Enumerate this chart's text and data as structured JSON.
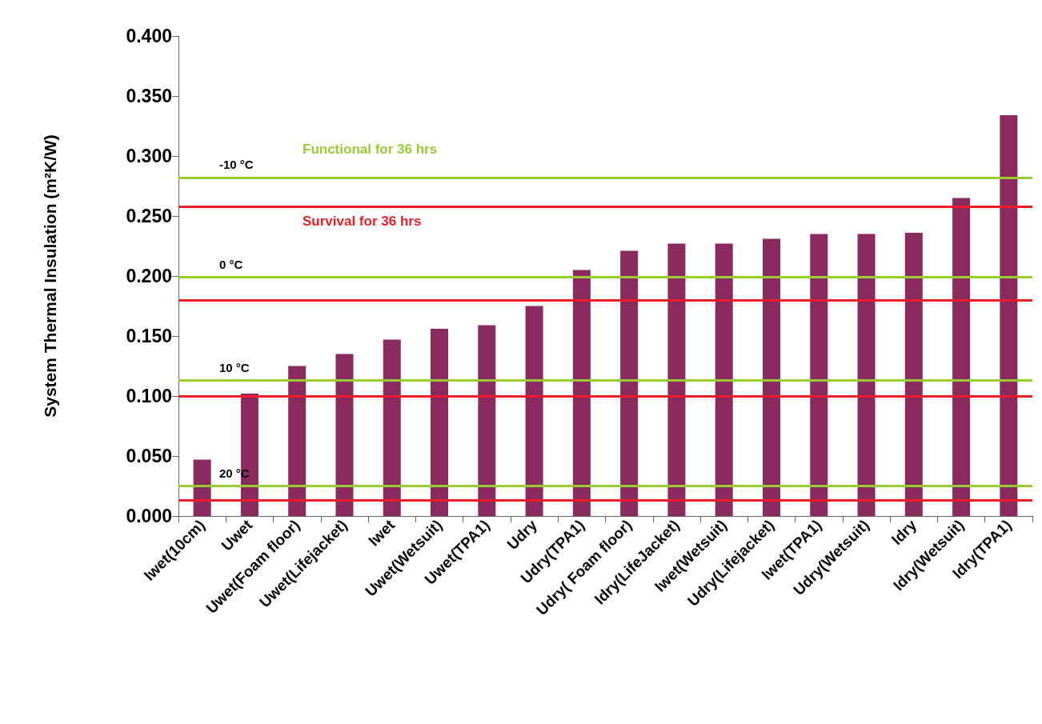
{
  "chart_data": {
    "type": "bar",
    "ylabel": "System Thermal Insulation (m²K/W)",
    "categories": [
      "Iwet(10cm)",
      "Uwet",
      "Uwet(Foam floor)",
      "Uwet(Lifejacket)",
      "Iwet",
      "Uwet(Wetsuit)",
      "Uwet(TPA1)",
      "Udry",
      "Udry(TPA1)",
      "Udry( Foam floor)",
      "Idry(LifeJacket)",
      "Iwet(Wetsuit)",
      "Udry(Lifejacket)",
      "Iwet(TPA1)",
      "Udry(Wetsuit)",
      "Idry",
      "Idry(Wetsuit)",
      "Idry(TPA1)"
    ],
    "values": [
      0.047,
      0.102,
      0.125,
      0.135,
      0.147,
      0.156,
      0.159,
      0.175,
      0.205,
      0.221,
      0.227,
      0.227,
      0.231,
      0.235,
      0.235,
      0.236,
      0.265,
      0.334
    ],
    "color": "#8b2a5f",
    "ylim": [
      0,
      0.4
    ],
    "yticks": [
      {
        "value": 0,
        "label": "0.000"
      },
      {
        "value": 0.05,
        "label": "0.050"
      },
      {
        "value": 0.1,
        "label": "0.100"
      },
      {
        "value": 0.15,
        "label": "0.150"
      },
      {
        "value": 0.2,
        "label": "0.200"
      },
      {
        "value": 0.25,
        "label": "0.250"
      },
      {
        "value": 0.3,
        "label": "0.300"
      },
      {
        "value": 0.35,
        "label": "0.350"
      },
      {
        "value": 0.4,
        "label": "0.400"
      }
    ],
    "grid": false,
    "ref_lines": [
      {
        "axis": "y",
        "value": 0.282,
        "label": "-10 °C",
        "color": "#99cc33"
      },
      {
        "axis": "y",
        "value": 0.258,
        "label": null,
        "color": "#ee1c25"
      },
      {
        "axis": "y",
        "value": 0.199,
        "label": "0 °C",
        "color": "#99cc33"
      },
      {
        "axis": "y",
        "value": 0.18,
        "label": null,
        "color": "#ee1c25"
      },
      {
        "axis": "y",
        "value": 0.113,
        "label": "10 °C",
        "color": "#99cc33"
      },
      {
        "axis": "y",
        "value": 0.1,
        "label": null,
        "color": "#ee1c25"
      },
      {
        "axis": "y",
        "value": 0.025,
        "label": "20 °C",
        "color": "#99cc33"
      },
      {
        "axis": "y",
        "value": 0.013,
        "label": null,
        "color": "#ee1c25"
      }
    ],
    "annotations": [
      "Functional for 36 hrs",
      "Survival for 36 hrs"
    ]
  }
}
